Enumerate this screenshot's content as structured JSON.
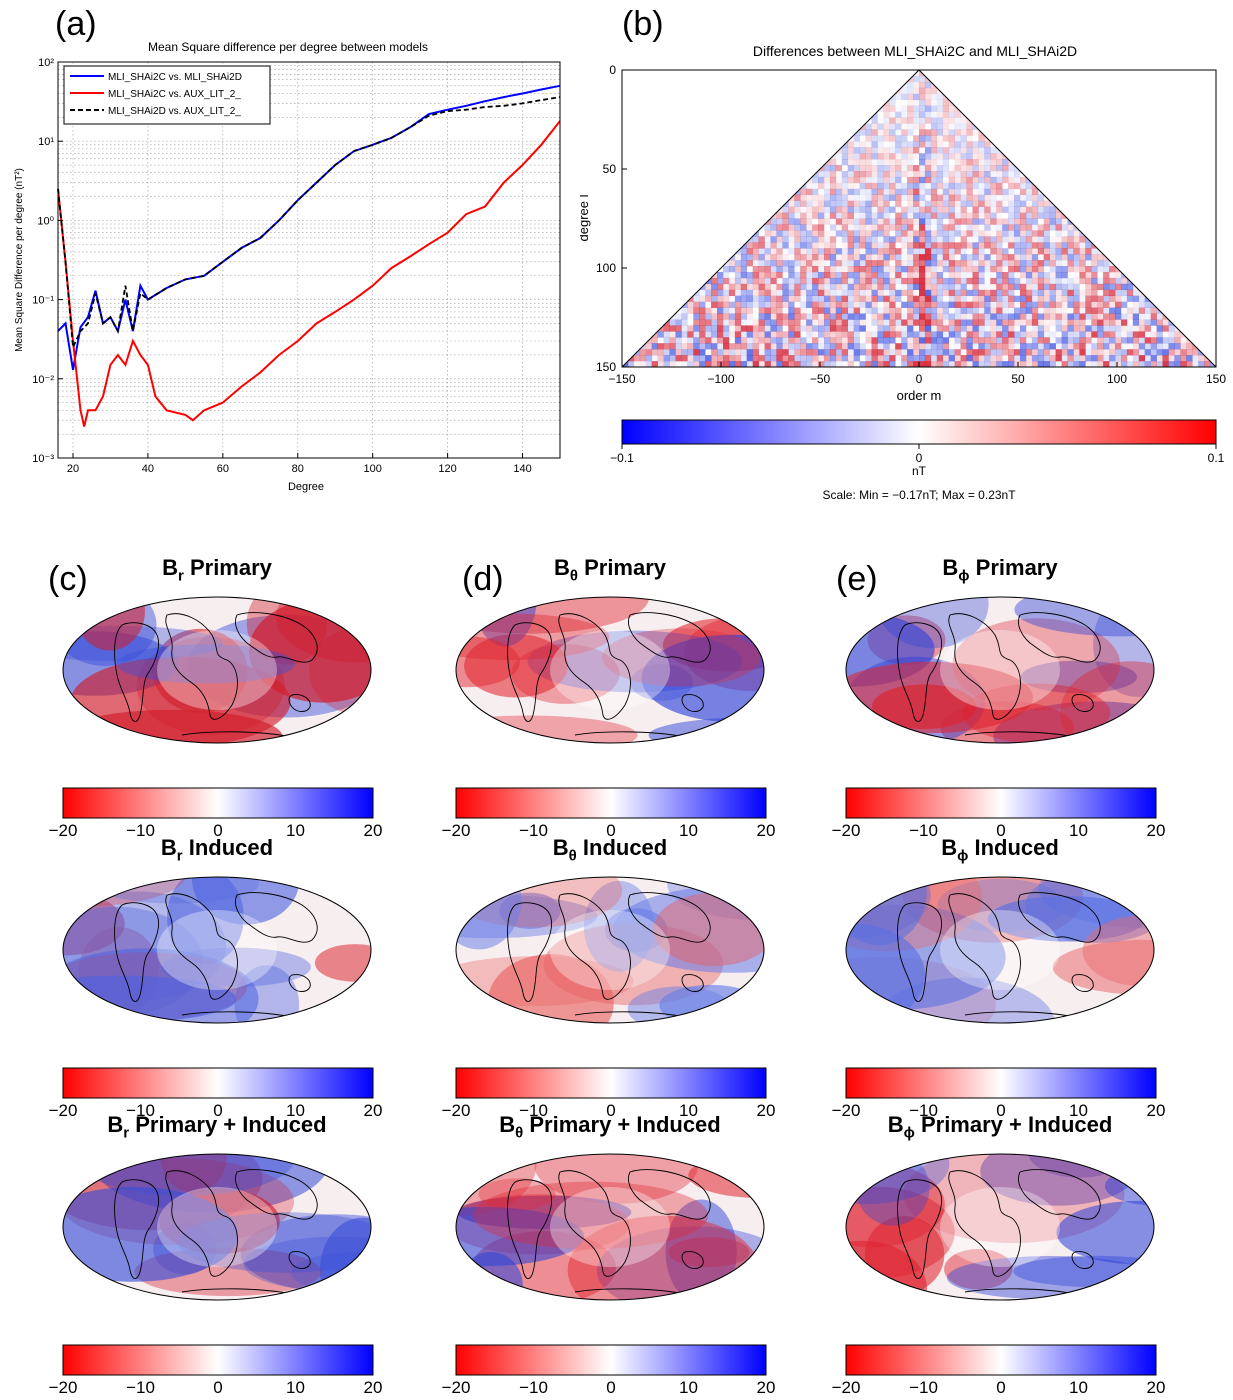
{
  "panels": {
    "a": {
      "letter": "(a)"
    },
    "b": {
      "letter": "(b)"
    },
    "c": {
      "letter": "(c)"
    },
    "d": {
      "letter": "(d)"
    },
    "e": {
      "letter": "(e)"
    }
  },
  "chart_data": [
    {
      "id": "a",
      "type": "line",
      "title": "Mean Square difference per degree between models",
      "xlabel": "Degree",
      "ylabel": "Mean Square Difference per degree (nT²)",
      "xlim": [
        16,
        150
      ],
      "ylim": [
        0.001,
        100
      ],
      "yscale": "log",
      "grid": true,
      "legend": "top-left",
      "x_ticks": [
        "20",
        "40",
        "60",
        "80",
        "100",
        "120",
        "140"
      ],
      "y_ticks": [
        "10⁻³",
        "10⁻²",
        "10⁻¹",
        "10⁰",
        "10¹",
        "10²"
      ],
      "series": [
        {
          "name": "MLI_SHAi2C vs. MLI_SHAi2D",
          "color": "#0000ff",
          "dash": "solid",
          "x": [
            16,
            18,
            20,
            22,
            24,
            26,
            28,
            30,
            32,
            34,
            36,
            38,
            40,
            45,
            50,
            55,
            60,
            65,
            70,
            75,
            80,
            85,
            90,
            95,
            100,
            105,
            110,
            115,
            120,
            125,
            130,
            135,
            140,
            145,
            150
          ],
          "y": [
            0.04,
            0.05,
            0.013,
            0.045,
            0.06,
            0.13,
            0.05,
            0.06,
            0.04,
            0.1,
            0.04,
            0.15,
            0.1,
            0.14,
            0.18,
            0.2,
            0.3,
            0.45,
            0.6,
            1.0,
            1.8,
            3.0,
            5.0,
            7.5,
            9.0,
            11.0,
            15.0,
            22.0,
            25.0,
            28.0,
            32.0,
            36.0,
            40.0,
            45.0,
            50.0
          ]
        },
        {
          "name": "MLI_SHAi2C vs. AUX_LIT_2_",
          "color": "#ff0000",
          "dash": "solid",
          "x": [
            16,
            18,
            20,
            22,
            23,
            24,
            26,
            28,
            30,
            32,
            34,
            36,
            38,
            40,
            42,
            45,
            50,
            52,
            55,
            60,
            65,
            70,
            75,
            80,
            85,
            90,
            95,
            100,
            105,
            110,
            115,
            120,
            125,
            130,
            135,
            140,
            145,
            150
          ],
          "y": [
            2.5,
            0.3,
            0.03,
            0.004,
            0.0025,
            0.004,
            0.004,
            0.006,
            0.015,
            0.02,
            0.015,
            0.03,
            0.02,
            0.015,
            0.006,
            0.004,
            0.0035,
            0.003,
            0.004,
            0.005,
            0.008,
            0.012,
            0.02,
            0.03,
            0.05,
            0.07,
            0.1,
            0.15,
            0.25,
            0.35,
            0.5,
            0.7,
            1.2,
            1.5,
            3.0,
            5.0,
            9.0,
            18.0
          ]
        },
        {
          "name": "MLI_SHAi2D vs. AUX_LIT_2_",
          "color": "#000000",
          "dash": "dashed",
          "x": [
            16,
            18,
            20,
            22,
            24,
            26,
            28,
            30,
            32,
            34,
            36,
            38,
            40,
            45,
            50,
            55,
            60,
            65,
            70,
            75,
            80,
            85,
            90,
            95,
            100,
            105,
            110,
            115,
            120,
            125,
            130,
            135,
            140,
            145,
            150
          ],
          "y": [
            2.5,
            0.3,
            0.025,
            0.04,
            0.05,
            0.12,
            0.05,
            0.06,
            0.04,
            0.15,
            0.04,
            0.12,
            0.1,
            0.14,
            0.18,
            0.2,
            0.3,
            0.45,
            0.6,
            1.0,
            1.8,
            3.0,
            5.0,
            7.5,
            9.0,
            11.0,
            15.0,
            21.0,
            24.0,
            25.0,
            27.0,
            28.0,
            30.0,
            33.0,
            36.0
          ]
        }
      ]
    },
    {
      "id": "b",
      "type": "heatmap",
      "title": "Differences between MLI_SHAi2C and MLI_SHAi2D",
      "xlabel": "order m",
      "ylabel": "degree l",
      "xlim": [
        -150,
        150
      ],
      "ylim": [
        150,
        0
      ],
      "x_ticks": [
        "−150",
        "−100",
        "−50",
        "0",
        "50",
        "100",
        "150"
      ],
      "y_ticks": [
        "0",
        "50",
        "100",
        "150"
      ],
      "colorbar": {
        "min": -0.1,
        "max": 0.1,
        "ticks": [
          "−0.1",
          "0",
          "0.1"
        ],
        "unit": "nT",
        "note": "Scale: Min = −0.17nT; Max = 0.23nT",
        "colors": [
          "#0000ff",
          "#ffffff",
          "#ff0000"
        ]
      }
    }
  ],
  "maps": {
    "colorbar_ticks": [
      "−20",
      "−10",
      "0",
      "10",
      "20"
    ],
    "colorbar_colors": [
      "#ff0000",
      "#ffffff",
      "#0000ff"
    ],
    "columns": [
      {
        "component": "B",
        "sub_glyph": "r"
      },
      {
        "component": "B",
        "sub_glyph": "θ"
      },
      {
        "component": "B",
        "sub_glyph": "ϕ"
      }
    ],
    "rows": [
      "Primary",
      "Induced",
      "Primary + Induced"
    ]
  }
}
